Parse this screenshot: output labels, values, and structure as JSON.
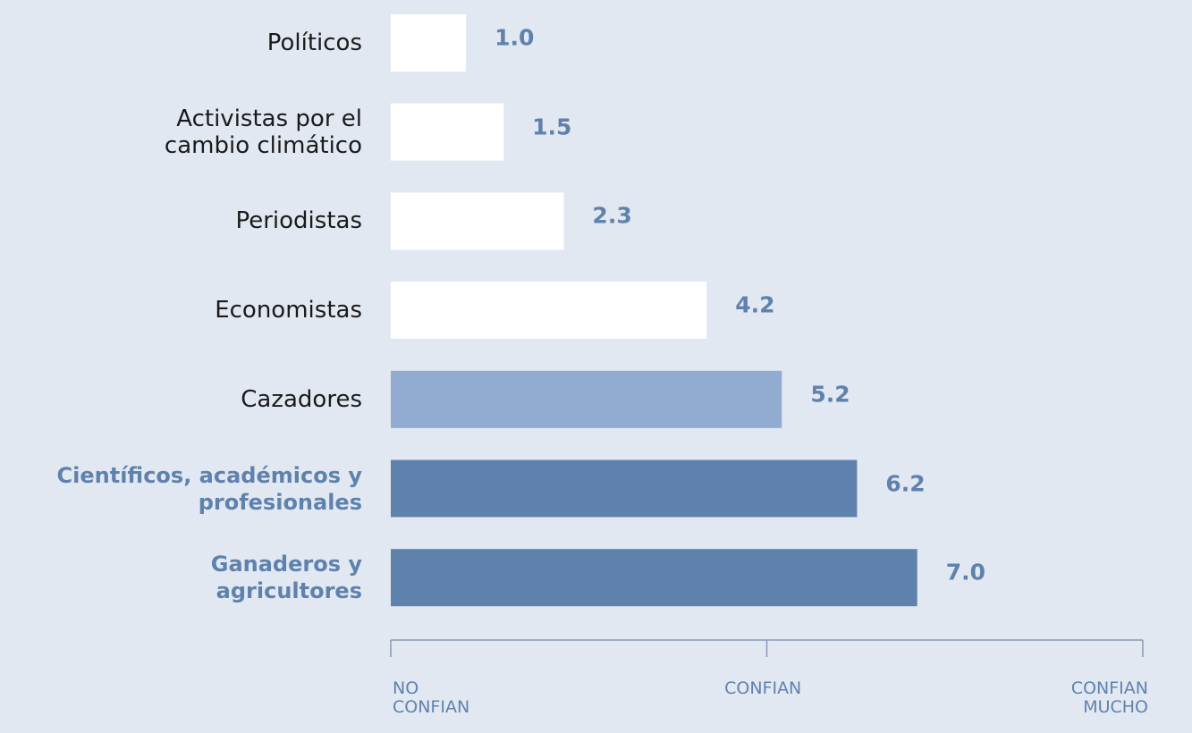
{
  "chart_data": {
    "type": "bar",
    "orientation": "horizontal",
    "categories": [
      "Políticos",
      "Activistas por el\ncambio climático",
      "Periodistas",
      "Economistas",
      "Cazadores",
      "Científicos, académicos y\nprofesionales",
      "Ganaderos y\nagricultores"
    ],
    "values": [
      1.0,
      1.5,
      2.3,
      4.2,
      5.2,
      6.2,
      7.0
    ],
    "value_labels": [
      "1.0",
      "1.5",
      "2.3",
      "4.2",
      "5.2",
      "6.2",
      "7.0"
    ],
    "colors": [
      "#ffffff",
      "#ffffff",
      "#ffffff",
      "#ffffff",
      "#91acd0",
      "#5f82ad",
      "#5f82ad"
    ],
    "label_colors": [
      "#1a1a1a",
      "#1a1a1a",
      "#1a1a1a",
      "#1a1a1a",
      "#1a1a1a",
      "#5f82ad",
      "#5f82ad"
    ],
    "xlim": [
      0,
      10
    ],
    "xticks": [
      {
        "value": 0,
        "label": "NO\nCONFIAN"
      },
      {
        "value": 5,
        "label": "CONFIAN"
      },
      {
        "value": 10,
        "label": "CONFIAN\nMUCHO"
      }
    ]
  }
}
